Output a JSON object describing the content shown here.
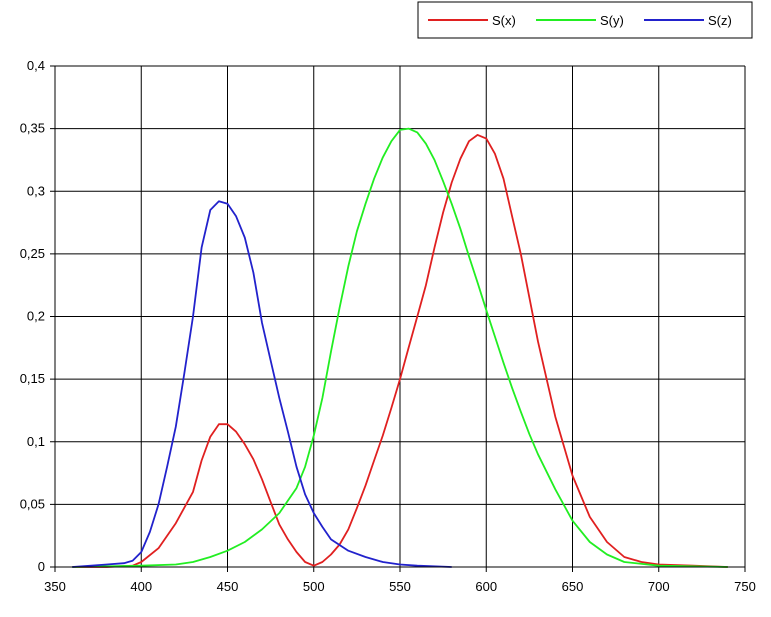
{
  "chart_data": {
    "type": "line",
    "title": "",
    "xlabel": "",
    "ylabel": "",
    "xlim": [
      350,
      750
    ],
    "ylim": [
      0,
      0.4
    ],
    "grid": true,
    "legend_position": "top-right",
    "x_ticks": [
      "350",
      "400",
      "450",
      "500",
      "550",
      "600",
      "650",
      "700",
      "750"
    ],
    "y_ticks": [
      "0",
      "0,05",
      "0,1",
      "0,15",
      "0,2",
      "0,25",
      "0,3",
      "0,35",
      "0,4"
    ],
    "series": [
      {
        "name": "S(x)",
        "color": "#e02020",
        "x": [
          360,
          380,
          395,
          400,
          410,
          420,
          430,
          435,
          440,
          445,
          450,
          455,
          460,
          465,
          470,
          475,
          480,
          485,
          490,
          495,
          500,
          505,
          510,
          515,
          520,
          525,
          530,
          535,
          540,
          545,
          550,
          555,
          560,
          565,
          570,
          575,
          580,
          585,
          590,
          595,
          600,
          605,
          610,
          615,
          620,
          625,
          630,
          640,
          650,
          660,
          670,
          680,
          690,
          700,
          720,
          740
        ],
        "y": [
          0,
          0,
          0.001,
          0.004,
          0.015,
          0.035,
          0.06,
          0.085,
          0.104,
          0.114,
          0.114,
          0.108,
          0.098,
          0.086,
          0.07,
          0.052,
          0.034,
          0.022,
          0.012,
          0.004,
          0.001,
          0.004,
          0.01,
          0.018,
          0.03,
          0.047,
          0.065,
          0.085,
          0.105,
          0.127,
          0.15,
          0.175,
          0.2,
          0.225,
          0.255,
          0.283,
          0.307,
          0.326,
          0.34,
          0.345,
          0.342,
          0.33,
          0.31,
          0.28,
          0.25,
          0.215,
          0.18,
          0.12,
          0.073,
          0.04,
          0.02,
          0.008,
          0.004,
          0.002,
          0.001,
          0
        ]
      },
      {
        "name": "S(y)",
        "color": "#22ee22",
        "x": [
          360,
          400,
          420,
          430,
          440,
          450,
          460,
          470,
          480,
          490,
          495,
          500,
          505,
          510,
          515,
          520,
          525,
          530,
          535,
          540,
          545,
          550,
          555,
          560,
          565,
          570,
          575,
          580,
          585,
          590,
          595,
          600,
          605,
          610,
          615,
          620,
          625,
          630,
          640,
          650,
          660,
          670,
          680,
          700,
          740
        ],
        "y": [
          0,
          0.001,
          0.002,
          0.004,
          0.008,
          0.013,
          0.02,
          0.03,
          0.043,
          0.063,
          0.08,
          0.105,
          0.135,
          0.172,
          0.207,
          0.24,
          0.268,
          0.29,
          0.31,
          0.327,
          0.34,
          0.349,
          0.35,
          0.347,
          0.338,
          0.325,
          0.308,
          0.29,
          0.27,
          0.248,
          0.227,
          0.205,
          0.184,
          0.163,
          0.143,
          0.124,
          0.106,
          0.09,
          0.062,
          0.037,
          0.02,
          0.01,
          0.004,
          0.001,
          0
        ]
      },
      {
        "name": "S(z)",
        "color": "#2222cc",
        "x": [
          360,
          380,
          390,
          395,
          400,
          405,
          410,
          415,
          420,
          425,
          430,
          435,
          440,
          445,
          450,
          455,
          460,
          465,
          470,
          475,
          480,
          485,
          490,
          495,
          500,
          505,
          510,
          520,
          530,
          540,
          550,
          560,
          580
        ],
        "y": [
          0,
          0.002,
          0.003,
          0.005,
          0.012,
          0.028,
          0.05,
          0.08,
          0.112,
          0.155,
          0.2,
          0.255,
          0.285,
          0.292,
          0.29,
          0.28,
          0.263,
          0.235,
          0.195,
          0.165,
          0.135,
          0.108,
          0.08,
          0.058,
          0.043,
          0.032,
          0.022,
          0.013,
          0.008,
          0.004,
          0.002,
          0.001,
          0
        ]
      }
    ]
  }
}
